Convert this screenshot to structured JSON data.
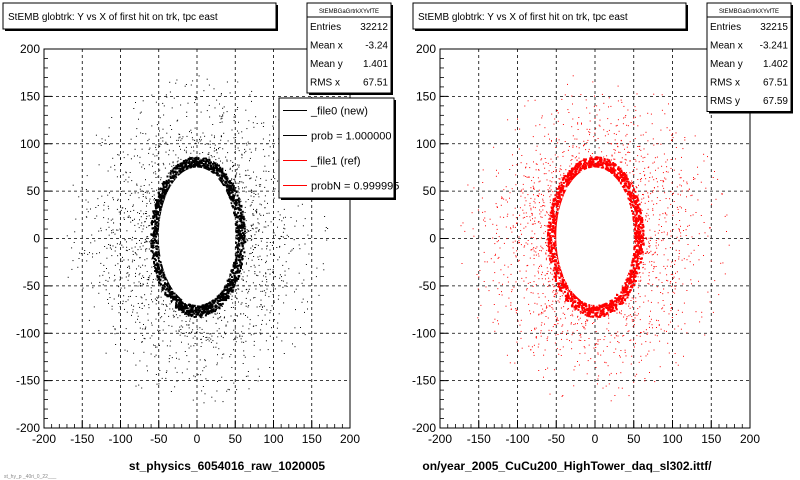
{
  "chart_data": [
    {
      "type": "scatter",
      "title": "StEMB globtrk: Y vs X of first hit on trk, tpc east",
      "xlabel": "st_physics_6054016_raw_1020005",
      "ylabel": "",
      "xlim": [
        -200,
        200
      ],
      "ylim": [
        -200,
        200
      ],
      "xticks": [
        -200,
        -150,
        -100,
        -50,
        0,
        50,
        100,
        150,
        200
      ],
      "yticks": [
        -200,
        -150,
        -100,
        -50,
        0,
        50,
        100,
        150,
        200
      ],
      "grid": true,
      "marker_color": "#000000",
      "distribution": {
        "shape": "dense ring around an empty central hole, sparse scatter out to radius ~170",
        "hole_x": [
          -50,
          50
        ],
        "hole_y": [
          -70,
          75
        ],
        "ring_width": 12
      },
      "stats": {
        "header": "StEMBGaGrtrkXYvfTE",
        "rows": [
          {
            "label": "Entries",
            "value": "32212"
          },
          {
            "label": "Mean x",
            "value": "-3.24"
          },
          {
            "label": "Mean y",
            "value": "1.401"
          },
          {
            "label": "RMS x",
            "value": "67.51"
          }
        ]
      },
      "legend": {
        "placement": "top-right",
        "entries": [
          {
            "label": "_file0 (new)",
            "color": "#000000"
          },
          {
            "label": "prob = 1.000000",
            "color": "#000000"
          },
          {
            "label": "_file1 (ref)",
            "color": "#ff0000"
          },
          {
            "label": "probN = 0.999995",
            "color": "#ff0000"
          }
        ]
      }
    },
    {
      "type": "scatter",
      "title": "StEMB globtrk: Y vs X of first hit on trk, tpc east",
      "xlabel": "on/year_2005_CuCu200_HighTower_daq_sl302.ittf/",
      "ylabel": "",
      "xlim": [
        -200,
        200
      ],
      "ylim": [
        -200,
        200
      ],
      "xticks": [
        -200,
        -150,
        -100,
        -50,
        0,
        50,
        100,
        150,
        200
      ],
      "yticks": [
        -200,
        -150,
        -100,
        -50,
        0,
        50,
        100,
        150,
        200
      ],
      "grid": true,
      "marker_color": "#ff0000",
      "distribution": {
        "shape": "dense ring around an empty central hole, sparse scatter out to radius ~170",
        "hole_x": [
          -50,
          50
        ],
        "hole_y": [
          -70,
          75
        ],
        "ring_width": 12
      },
      "stats": {
        "header": "StEMBGaGrtrkXYvfTE",
        "rows": [
          {
            "label": "Entries",
            "value": "32215"
          },
          {
            "label": "Mean x",
            "value": "-3.241"
          },
          {
            "label": "Mean y",
            "value": "1.402"
          },
          {
            "label": "RMS x",
            "value": "67.51"
          },
          {
            "label": "RMS y",
            "value": "67.59"
          }
        ]
      }
    }
  ],
  "footer_note": "st_hy_p   _40ri_0_22___"
}
